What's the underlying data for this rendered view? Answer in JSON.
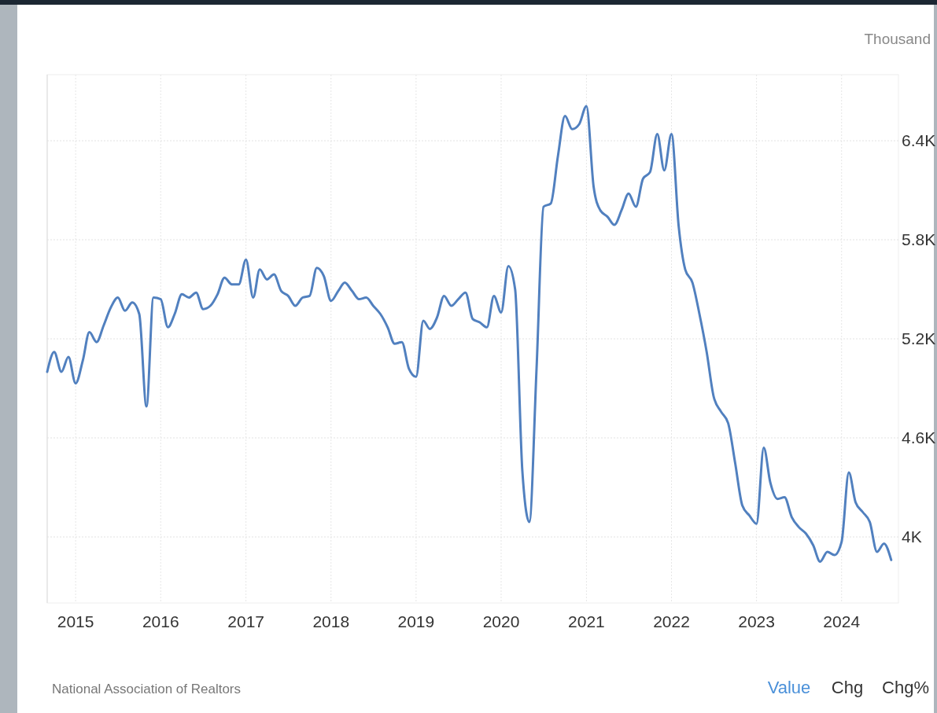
{
  "chart_data": {
    "type": "line",
    "ylabel": "Thousand",
    "x": [
      "2014-09",
      "2014-10",
      "2014-11",
      "2014-12",
      "2015-01",
      "2015-02",
      "2015-03",
      "2015-04",
      "2015-05",
      "2015-06",
      "2015-07",
      "2015-08",
      "2015-09",
      "2015-10",
      "2015-11",
      "2015-12",
      "2016-01",
      "2016-02",
      "2016-03",
      "2016-04",
      "2016-05",
      "2016-06",
      "2016-07",
      "2016-08",
      "2016-09",
      "2016-10",
      "2016-11",
      "2016-12",
      "2017-01",
      "2017-02",
      "2017-03",
      "2017-04",
      "2017-05",
      "2017-06",
      "2017-07",
      "2017-08",
      "2017-09",
      "2017-10",
      "2017-11",
      "2017-12",
      "2018-01",
      "2018-02",
      "2018-03",
      "2018-04",
      "2018-05",
      "2018-06",
      "2018-07",
      "2018-08",
      "2018-09",
      "2018-10",
      "2018-11",
      "2018-12",
      "2019-01",
      "2019-02",
      "2019-03",
      "2019-04",
      "2019-05",
      "2019-06",
      "2019-07",
      "2019-08",
      "2019-09",
      "2019-10",
      "2019-11",
      "2019-12",
      "2020-01",
      "2020-02",
      "2020-03",
      "2020-04",
      "2020-05",
      "2020-06",
      "2020-07",
      "2020-08",
      "2020-09",
      "2020-10",
      "2020-11",
      "2020-12",
      "2021-01",
      "2021-02",
      "2021-03",
      "2021-04",
      "2021-05",
      "2021-06",
      "2021-07",
      "2021-08",
      "2021-09",
      "2021-10",
      "2021-11",
      "2021-12",
      "2022-01",
      "2022-02",
      "2022-03",
      "2022-04",
      "2022-05",
      "2022-06",
      "2022-07",
      "2022-08",
      "2022-09",
      "2022-10",
      "2022-11",
      "2022-12",
      "2023-01",
      "2023-02",
      "2023-03",
      "2023-04",
      "2023-05",
      "2023-06",
      "2023-07",
      "2023-08",
      "2023-09",
      "2023-10",
      "2023-11",
      "2023-12",
      "2024-01",
      "2024-02",
      "2024-03",
      "2024-04",
      "2024-05",
      "2024-06",
      "2024-07",
      "2024-08"
    ],
    "series": [
      {
        "color": "#5180bf",
        "values": [
          5000,
          5120,
          5000,
          5090,
          4930,
          5070,
          5240,
          5180,
          5280,
          5390,
          5450,
          5370,
          5420,
          5350,
          4790,
          5450,
          5440,
          5270,
          5350,
          5470,
          5450,
          5480,
          5380,
          5400,
          5470,
          5570,
          5530,
          5530,
          5680,
          5450,
          5620,
          5560,
          5590,
          5490,
          5460,
          5400,
          5450,
          5460,
          5630,
          5580,
          5430,
          5490,
          5540,
          5490,
          5440,
          5450,
          5400,
          5350,
          5270,
          5170,
          5180,
          5020,
          4970,
          5310,
          5260,
          5330,
          5460,
          5400,
          5440,
          5480,
          5320,
          5300,
          5270,
          5460,
          5360,
          5640,
          5500,
          4400,
          4090,
          5020,
          6000,
          6020,
          6310,
          6550,
          6470,
          6500,
          6610,
          6120,
          5980,
          5940,
          5890,
          5980,
          6080,
          6000,
          6170,
          6210,
          6440,
          6220,
          6440,
          5880,
          5620,
          5540,
          5350,
          5120,
          4850,
          4760,
          4690,
          4450,
          4190,
          4130,
          4080,
          4540,
          4330,
          4230,
          4240,
          4120,
          4060,
          4020,
          3950,
          3850,
          3910,
          3890,
          3970,
          4390,
          4210,
          4150,
          4090,
          3910,
          3960,
          3860
        ]
      }
    ],
    "xlim": [
      "2014-09",
      "2024-09"
    ],
    "xticks": [
      "2015",
      "2016",
      "2017",
      "2018",
      "2019",
      "2020",
      "2021",
      "2022",
      "2023",
      "2024"
    ],
    "ylim": [
      3600,
      6800
    ],
    "yticks": [
      {
        "value": 4000,
        "label": "4K"
      },
      {
        "value": 4600,
        "label": "4.6K"
      },
      {
        "value": 5200,
        "label": "5.2K"
      },
      {
        "value": 5800,
        "label": "5.8K"
      },
      {
        "value": 6400,
        "label": "6.4K"
      }
    ],
    "grid": true,
    "line_style": "solid",
    "marker": "none",
    "annotations": [
      "National Association of Realtors",
      "Value",
      "Chg",
      "Chg%"
    ]
  }
}
